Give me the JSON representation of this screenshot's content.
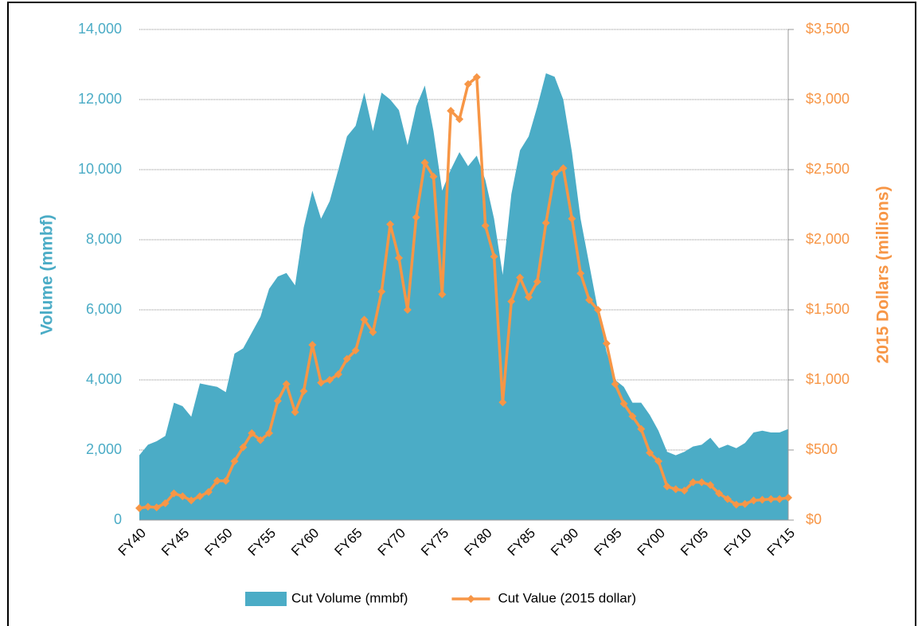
{
  "chart_data": {
    "type": "area-line",
    "y_label": "Volume (mmbf)",
    "y2_label": "2015 Dollars (millions)",
    "categories": [
      "FY40",
      null,
      null,
      null,
      null,
      "FY45",
      null,
      null,
      null,
      null,
      "FY50",
      null,
      null,
      null,
      null,
      "FY55",
      null,
      null,
      null,
      null,
      "FY60",
      null,
      null,
      null,
      null,
      "FY65",
      null,
      null,
      null,
      null,
      "FY70",
      null,
      null,
      null,
      null,
      "FY75",
      null,
      null,
      null,
      null,
      "FY80",
      null,
      null,
      null,
      null,
      "FY85",
      null,
      null,
      null,
      null,
      "FY90",
      null,
      null,
      null,
      null,
      "FY95",
      null,
      null,
      null,
      null,
      "FY00",
      null,
      null,
      null,
      null,
      "FY05",
      null,
      null,
      null,
      null,
      "FY10",
      null,
      null,
      null,
      null,
      "FY15"
    ],
    "series": [
      {
        "name": "Cut Volume (mmbf)",
        "color": "#4bacc6",
        "kind": "area",
        "axis": "y",
        "values": [
          1850,
          2150,
          2250,
          2400,
          3350,
          3250,
          2950,
          3900,
          3850,
          3800,
          3650,
          4750,
          4900,
          5350,
          5800,
          6600,
          6950,
          7050,
          6700,
          8350,
          9400,
          8600,
          9100,
          10000,
          10950,
          11250,
          12200,
          11100,
          12200,
          12000,
          11700,
          10700,
          11800,
          12400,
          11100,
          9400,
          10000,
          10500,
          10100,
          10400,
          9700,
          8600,
          7000,
          9300,
          10550,
          10950,
          11800,
          12750,
          12650,
          12000,
          10500,
          8600,
          7300,
          6000,
          4800,
          4000,
          3800,
          3350,
          3350,
          3000,
          2550,
          1950,
          1850,
          1950,
          2100,
          2150,
          2350,
          2050,
          2150,
          2050,
          2200,
          2500,
          2550,
          2500,
          2500,
          2600
        ]
      },
      {
        "name": "Cut Value (2015 dollar)",
        "color": "#f79646",
        "kind": "line",
        "axis": "y2",
        "values": [
          85,
          95,
          90,
          120,
          190,
          170,
          140,
          170,
          200,
          280,
          280,
          420,
          520,
          620,
          570,
          620,
          850,
          970,
          770,
          920,
          1250,
          980,
          1000,
          1040,
          1150,
          1210,
          1430,
          1340,
          1630,
          2110,
          1870,
          1500,
          2160,
          2550,
          2450,
          1610,
          2920,
          2860,
          3110,
          3160,
          2100,
          1880,
          840,
          1560,
          1730,
          1590,
          1700,
          2120,
          2470,
          2510,
          2150,
          1760,
          1570,
          1500,
          1260,
          970,
          830,
          740,
          650,
          480,
          420,
          240,
          220,
          210,
          270,
          270,
          250,
          190,
          150,
          110,
          115,
          140,
          145,
          150,
          150,
          160
        ]
      }
    ],
    "ylim": [
      0,
      14000
    ],
    "yticks": [
      0,
      {
        "value": 2000,
        "label": "2,000"
      },
      {
        "value": 4000,
        "label": "4,000"
      },
      {
        "value": 6000,
        "label": "6,000"
      },
      {
        "value": 8000,
        "label": "8,000"
      },
      {
        "value": 10000,
        "label": "10,000"
      },
      {
        "value": 12000,
        "label": "12,000"
      },
      {
        "value": 14000,
        "label": "14,000"
      }
    ],
    "y2lim": [
      0,
      3500
    ],
    "y2ticks": [
      {
        "value": 0,
        "label": "$0"
      },
      {
        "value": 500,
        "label": "$500"
      },
      {
        "value": 1000,
        "label": "$1,000"
      },
      {
        "value": 1500,
        "label": "$1,500"
      },
      {
        "value": 2000,
        "label": "$2,000"
      },
      {
        "value": 2500,
        "label": "$2,500"
      },
      {
        "value": 3000,
        "label": "$3,000"
      },
      {
        "value": 3500,
        "label": "$3,500"
      }
    ],
    "grid": true,
    "legend": "bottom"
  }
}
